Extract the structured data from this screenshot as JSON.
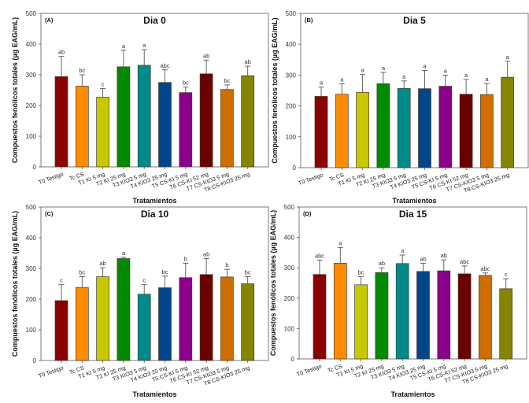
{
  "chart_data": [
    {
      "type": "bar",
      "panel": "(A)",
      "title": "Dia 0",
      "xlabel": "Tratamientos",
      "ylabel": "Compuestos fenólicos totales (µg EAG/mL)",
      "ylim": [
        0,
        500
      ],
      "yticks": [
        0,
        100,
        200,
        300,
        400,
        500
      ],
      "categories": [
        "T0 Testigo",
        "Tc CS",
        "T1 KI 5 mg",
        "T2 KI 25 mg",
        "T3 KIO3 5 mg",
        "T4 KIO3 25 mg",
        "T5 CS-KI 5 mg",
        "T6 CS-KI 52 mg",
        "T7 CS-KIO3 5 mg",
        "T8 CS-KIO3 25 mg"
      ],
      "values": [
        294,
        263,
        227,
        326,
        331,
        275,
        242,
        303,
        252,
        297
      ],
      "error_upper": [
        360,
        300,
        255,
        380,
        382,
        316,
        260,
        348,
        267,
        328
      ],
      "significance": [
        "ab",
        "bc",
        "c",
        "a",
        "a",
        "abc",
        "bc",
        "ab",
        "bc",
        "ab"
      ]
    },
    {
      "type": "bar",
      "panel": "(B)",
      "title": "Dia 5",
      "xlabel": "Tratamientos",
      "ylabel": "Compuestos fenólicos totales (µg EAG/mL)",
      "ylim": [
        0,
        500
      ],
      "yticks": [
        0,
        100,
        200,
        300,
        400,
        500
      ],
      "categories": [
        "T0 Testigo",
        "Tc CS",
        "T1 KI 5 mg",
        "T2 KI 25 mg",
        "T3 KIO3 5 mg",
        "T4 KIO3 25 mg",
        "T5 CS-KI 5 mg",
        "T6 CS-KI 52 mg",
        "T7 CS-KIO3 5 mg",
        "T8 CS-KIO3 25 mg"
      ],
      "values": [
        231,
        238,
        244,
        272,
        257,
        256,
        264,
        238,
        237,
        293
      ],
      "error_upper": [
        261,
        272,
        302,
        309,
        281,
        315,
        300,
        286,
        273,
        345
      ],
      "significance": [
        "a",
        "a",
        "a",
        "a",
        "a",
        "a",
        "a",
        "a",
        "a",
        "a"
      ]
    },
    {
      "type": "bar",
      "panel": "(C)",
      "title": "Dia 10",
      "xlabel": "Tratamientos",
      "ylabel": "Compuestos fenólicos totales (µg EAG/mL)",
      "ylim": [
        0,
        500
      ],
      "yticks": [
        0,
        100,
        200,
        300,
        400,
        500
      ],
      "categories": [
        "T0 Testigo",
        "Tc CS",
        "T1 KI 5 mg",
        "T2 KI 25 mg",
        "T3 KIO3 5 mg",
        "T4 KIO3 25 mg",
        "T5 CS-KI 5 mg",
        "T6 CS-KI 52 mg",
        "T7 CS-KIO3 5 mg",
        "T8 CS-KIO3 25 mg"
      ],
      "values": [
        195,
        238,
        273,
        332,
        216,
        237,
        270,
        280,
        272,
        250
      ],
      "error_upper": [
        248,
        273,
        302,
        336,
        247,
        275,
        317,
        332,
        297,
        273
      ],
      "significance": [
        "c",
        "bc",
        "ab",
        "a",
        "c",
        "bc",
        "b",
        "ab",
        "b",
        "bc"
      ]
    },
    {
      "type": "bar",
      "panel": "(D)",
      "title": "Dia 15",
      "xlabel": "Tratamientos",
      "ylabel": "Compuestos fenólicos totales (µg EAG/mL)",
      "ylim": [
        0,
        500
      ],
      "yticks": [
        0,
        100,
        200,
        300,
        400,
        500
      ],
      "categories": [
        "T0 Testigo",
        "Tc CS",
        "T1 KI 5 mg",
        "T2 KI 25 mg",
        "T3 KIO3 5 mg",
        "T4 KIO3 25 mg",
        "T5 CS-KI 5 mg",
        "T6 CS-KI 52 mg",
        "T7 CS-KIO3 5 mg",
        "T8 CS-KIO3 25 mg"
      ],
      "values": [
        278,
        315,
        244,
        284,
        314,
        288,
        290,
        280,
        275,
        231
      ],
      "error_upper": [
        325,
        367,
        271,
        300,
        342,
        315,
        326,
        306,
        283,
        264
      ],
      "significance": [
        "abc",
        "a",
        "bc",
        "ab",
        "a",
        "ab",
        "ab",
        "abc",
        "abc",
        "c"
      ]
    }
  ],
  "bar_colors": [
    "#8b0000",
    "#ff8c00",
    "#c8c800",
    "#008b00",
    "#008b8b",
    "#00468b",
    "#8b008b",
    "#6b0000",
    "#d06e00",
    "#858500"
  ]
}
